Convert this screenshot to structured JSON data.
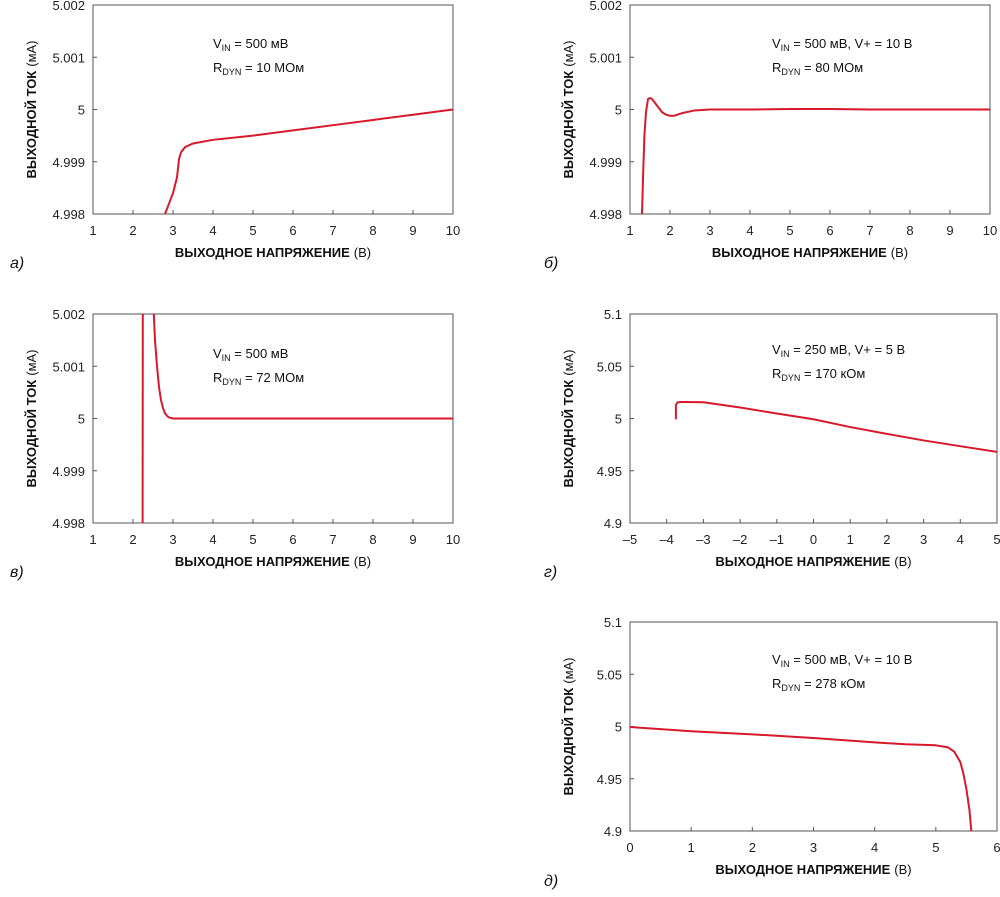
{
  "chart_data": [
    {
      "type": "line",
      "panel_label": "а)",
      "xlabel": {
        "bold": "ВЫХОДНОЕ НАПРЯЖЕНИЕ",
        "unit": "(В)"
      },
      "ylabel": {
        "bold": "ВЫХОДНОЙ ТОК",
        "unit": "(мА)"
      },
      "xlim": [
        1,
        10
      ],
      "ylim": [
        4.998,
        5.002
      ],
      "xticks": [
        "1",
        "2",
        "3",
        "4",
        "5",
        "6",
        "7",
        "8",
        "9",
        "10"
      ],
      "yticks": [
        "4.998",
        "4.999",
        "5",
        "5.001",
        "5.002"
      ],
      "annotation": {
        "line1": {
          "main": "V",
          "sub": "IN",
          "rest": " = 500 мВ"
        },
        "line2": {
          "main": "R",
          "sub": "DYN",
          "rest": " = 10 МОм"
        }
      },
      "series": [
        {
          "color": "#d7192b",
          "x": [
            2.8,
            2.9,
            3.0,
            3.1,
            3.15,
            3.2,
            3.3,
            3.5,
            4.0,
            5.0,
            6.0,
            7.0,
            8.0,
            9.0,
            10.0
          ],
          "y": [
            4.998,
            4.9982,
            4.9984,
            4.9987,
            4.99905,
            4.99918,
            4.99928,
            4.99935,
            4.99942,
            4.9995,
            4.9996,
            4.9997,
            4.9998,
            4.9999,
            5.0
          ]
        }
      ]
    },
    {
      "type": "line",
      "panel_label": "б)",
      "xlabel": {
        "bold": "ВЫХОДНОЕ НАПРЯЖЕНИЕ",
        "unit": "(В)"
      },
      "ylabel": {
        "bold": "ВЫХОДНОЙ ТОК",
        "unit": "(мА)"
      },
      "xlim": [
        1,
        10
      ],
      "ylim": [
        4.998,
        5.002
      ],
      "xticks": [
        "1",
        "2",
        "3",
        "4",
        "5",
        "6",
        "7",
        "8",
        "9",
        "10"
      ],
      "yticks": [
        "4.998",
        "4.999",
        "5",
        "5.001",
        "5.002"
      ],
      "annotation": {
        "line1": {
          "main": "V",
          "sub": "IN",
          "rest": " = 500 мВ, V+ = 10 В"
        },
        "line2": {
          "main": "R",
          "sub": "DYN",
          "rest": " = 80 МОм"
        }
      },
      "series": [
        {
          "color": "#d7192b",
          "x": [
            1.3,
            1.33,
            1.36,
            1.4,
            1.45,
            1.5,
            1.55,
            1.6,
            1.7,
            1.8,
            1.9,
            2.0,
            2.1,
            2.3,
            2.6,
            3.0,
            4.0,
            5.0,
            6.0,
            7.0,
            8.0,
            9.0,
            10.0
          ],
          "y": [
            4.998,
            4.9988,
            4.9995,
            4.99995,
            5.0002,
            5.00022,
            5.0002,
            5.00015,
            5.00005,
            4.99995,
            4.9999,
            4.99988,
            4.99988,
            4.99993,
            4.99998,
            5.0,
            5.0,
            5.00001,
            5.00001,
            5.0,
            5.0,
            5.0,
            5.0
          ]
        }
      ]
    },
    {
      "type": "line",
      "panel_label": "в)",
      "xlabel": {
        "bold": "ВЫХОДНОЕ НАПРЯЖЕНИЕ",
        "unit": "(В)"
      },
      "ylabel": {
        "bold": "ВЫХОДНОЙ ТОК",
        "unit": "(мА)"
      },
      "xlim": [
        1,
        10
      ],
      "ylim": [
        4.998,
        5.002
      ],
      "xticks": [
        "1",
        "2",
        "3",
        "4",
        "5",
        "6",
        "7",
        "8",
        "9",
        "10"
      ],
      "yticks": [
        "4.998",
        "4.999",
        "5",
        "5.001",
        "5.002"
      ],
      "annotation": {
        "line1": {
          "main": "V",
          "sub": "IN",
          "rest": " = 500 мВ"
        },
        "line2": {
          "main": "R",
          "sub": "DYN",
          "rest": " = 72 МОм"
        }
      },
      "series": [
        {
          "color": "#d7192b",
          "x": [
            2.24,
            2.245
          ],
          "y": [
            4.998,
            5.002
          ]
        },
        {
          "color": "#d7192b",
          "x": [
            2.52,
            2.55,
            2.6,
            2.65,
            2.7,
            2.75,
            2.8,
            2.85,
            2.9,
            2.95,
            3.0,
            3.2,
            4.0,
            5.0,
            6.0,
            7.0,
            8.0,
            9.0,
            10.0
          ],
          "y": [
            5.002,
            5.0015,
            5.001,
            5.0006,
            5.00035,
            5.0002,
            5.0001,
            5.00005,
            5.00002,
            5.00001,
            5.0,
            5.0,
            5.0,
            5.0,
            5.0,
            5.0,
            5.0,
            5.0,
            5.0
          ]
        }
      ]
    },
    {
      "type": "line",
      "panel_label": "г)",
      "xlabel": {
        "bold": "ВЫХОДНОЕ НАПРЯЖЕНИЕ",
        "unit": "(В)"
      },
      "ylabel": {
        "bold": "ВЫХОДНОЙ ТОК",
        "unit": "(мА)"
      },
      "xlim": [
        -5,
        5
      ],
      "ylim": [
        4.9,
        5.1
      ],
      "xticks": [
        "–5",
        "–4",
        "–3",
        "–2",
        "–1",
        "0",
        "1",
        "2",
        "3",
        "4",
        "5"
      ],
      "yticks": [
        "4.9",
        "4.95",
        "5",
        "5.05",
        "5.1"
      ],
      "annotation": {
        "line1": {
          "main": "V",
          "sub": "IN",
          "rest": " = 250 мВ, V+ = 5 В"
        },
        "line2": {
          "main": "R",
          "sub": "DYN",
          "rest": " = 170 кОм"
        }
      },
      "series": [
        {
          "color": "#d7192b",
          "x": [
            -3.75,
            -3.75,
            -3.7,
            -3.6,
            -3.5,
            -3.0,
            -2.0,
            -1.0,
            0.0,
            1.0,
            2.0,
            3.0,
            4.0,
            5.0
          ],
          "y": [
            5.0,
            5.013,
            5.0155,
            5.0158,
            5.0158,
            5.0155,
            5.0105,
            5.0048,
            4.9993,
            4.9918,
            4.9853,
            4.979,
            4.9735,
            4.968
          ]
        }
      ]
    },
    {
      "type": "line",
      "panel_label": "д)",
      "xlabel": {
        "bold": "ВЫХОДНОЕ НАПРЯЖЕНИЕ",
        "unit": "(В)"
      },
      "ylabel": {
        "bold": "ВЫХОДНОЙ ТОК",
        "unit": "(мА)"
      },
      "xlim": [
        0,
        6
      ],
      "ylim": [
        4.9,
        5.1
      ],
      "xticks": [
        "0",
        "1",
        "2",
        "3",
        "4",
        "5",
        "6"
      ],
      "yticks": [
        "4.9",
        "4.95",
        "5",
        "5.05",
        "5.1"
      ],
      "annotation": {
        "line1": {
          "main": "V",
          "sub": "IN",
          "rest": " = 500 мВ, V+ = 10 В"
        },
        "line2": {
          "main": "R",
          "sub": "DYN",
          "rest": " = 278 кОм"
        }
      },
      "series": [
        {
          "color": "#d7192b",
          "x": [
            0.0,
            1.0,
            2.0,
            3.0,
            4.0,
            4.5,
            5.0,
            5.2,
            5.3,
            5.4,
            5.45,
            5.5,
            5.55,
            5.58
          ],
          "y": [
            4.9995,
            4.9955,
            4.9925,
            4.989,
            4.9848,
            4.983,
            4.982,
            4.98,
            4.976,
            4.966,
            4.955,
            4.94,
            4.92,
            4.9
          ]
        }
      ]
    }
  ]
}
